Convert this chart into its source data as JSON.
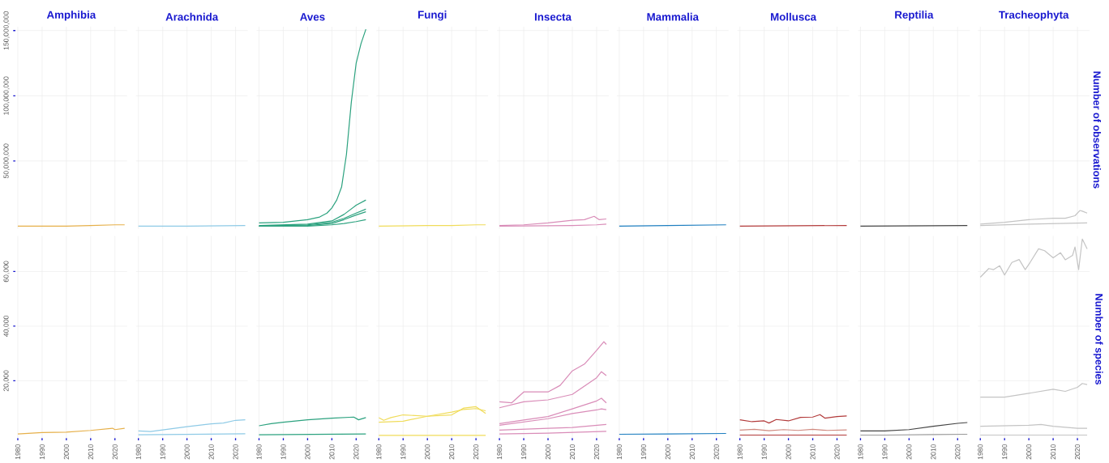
{
  "chart_data": [
    {
      "type": "line",
      "title": "Amphibia",
      "grid": true,
      "tick_labels": "y",
      "xlim": [
        1979,
        2025
      ],
      "ylim": [
        -2000000,
        153000000
      ],
      "xticks": [
        1980,
        1990,
        2000,
        2010,
        2020
      ],
      "yticks": [
        {
          "value": 50000000,
          "label": "50,000,000"
        },
        {
          "value": 100000000,
          "label": "100,000,000"
        },
        {
          "value": 150000000,
          "label": "150,000,000"
        }
      ],
      "series": [
        {
          "color": "#e6b04a",
          "x": [
            1980,
            1990,
            2000,
            2010,
            2020,
            2024
          ],
          "values": [
            0,
            0,
            0,
            500000,
            1000000,
            1000000
          ]
        }
      ]
    },
    {
      "type": "line",
      "title": "Arachnida",
      "grid": true,
      "tick_labels": false,
      "xlim": [
        1979,
        2025
      ],
      "ylim": [
        -2000000,
        153000000
      ],
      "xticks": [
        1980,
        1990,
        2000,
        2010,
        2020
      ],
      "yticks": [
        50000000,
        100000000,
        150000000
      ],
      "series": [
        {
          "color": "#8ecae6",
          "x": [
            1980,
            2000,
            2024
          ],
          "values": [
            0,
            0,
            500000
          ]
        }
      ]
    },
    {
      "type": "line",
      "title": "Aves",
      "grid": true,
      "tick_labels": false,
      "xlim": [
        1979,
        2025
      ],
      "ylim": [
        -2000000,
        153000000
      ],
      "xticks": [
        1980,
        1990,
        2000,
        2010,
        2020
      ],
      "yticks": [
        50000000,
        100000000,
        150000000
      ],
      "series": [
        {
          "color": "#2ca27f",
          "x": [
            1980,
            1990,
            2000,
            2005,
            2008,
            2010,
            2012,
            2014,
            2016,
            2018,
            2020,
            2022,
            2024
          ],
          "values": [
            2500000,
            3000000,
            5000000,
            7000000,
            10000000,
            14000000,
            20000000,
            30000000,
            55000000,
            95000000,
            125000000,
            140000000,
            151000000
          ]
        },
        {
          "color": "#2ca27f",
          "x": [
            1980,
            2000,
            2010,
            2015,
            2020,
            2024
          ],
          "values": [
            500000,
            1500000,
            4000000,
            9000000,
            16000000,
            20000000
          ]
        },
        {
          "color": "#2ca27f",
          "x": [
            1980,
            2000,
            2010,
            2015,
            2020,
            2024
          ],
          "values": [
            0,
            1000000,
            3000000,
            6000000,
            10000000,
            13000000
          ]
        },
        {
          "color": "#2ca27f",
          "x": [
            1980,
            2000,
            2010,
            2015,
            2020,
            2024
          ],
          "values": [
            0,
            500000,
            2000000,
            5000000,
            8500000,
            11000000
          ]
        },
        {
          "color": "#2ca27f",
          "x": [
            1980,
            2000,
            2010,
            2015,
            2020,
            2024
          ],
          "values": [
            0,
            0,
            1000000,
            2000000,
            3500000,
            5000000
          ]
        }
      ]
    },
    {
      "type": "line",
      "title": "Fungi",
      "grid": true,
      "tick_labels": false,
      "xlim": [
        1979,
        2025
      ],
      "ylim": [
        -2000000,
        153000000
      ],
      "xticks": [
        1980,
        1990,
        2000,
        2010,
        2020
      ],
      "yticks": [
        50000000,
        100000000,
        150000000
      ],
      "series": [
        {
          "color": "#f0dc5a",
          "x": [
            1980,
            2000,
            2010,
            2020,
            2024
          ],
          "values": [
            0,
            500000,
            500000,
            1000000,
            1000000
          ]
        }
      ]
    },
    {
      "type": "line",
      "title": "Insecta",
      "grid": true,
      "tick_labels": false,
      "xlim": [
        1979,
        2025
      ],
      "ylim": [
        -2000000,
        153000000
      ],
      "xticks": [
        1980,
        1990,
        2000,
        2010,
        2020
      ],
      "yticks": [
        50000000,
        100000000,
        150000000
      ],
      "series": [
        {
          "color": "#d98cb8",
          "x": [
            1980,
            1990,
            2000,
            2010,
            2015,
            2019,
            2021,
            2024
          ],
          "values": [
            500000,
            1000000,
            2500000,
            4500000,
            5000000,
            7500000,
            5000000,
            5500000
          ]
        },
        {
          "color": "#d98cb8",
          "x": [
            1980,
            2010,
            2020,
            2024
          ],
          "values": [
            0,
            500000,
            1000000,
            1500000
          ]
        }
      ]
    },
    {
      "type": "line",
      "title": "Mammalia",
      "grid": true,
      "tick_labels": false,
      "xlim": [
        1979,
        2025
      ],
      "ylim": [
        -2000000,
        153000000
      ],
      "xticks": [
        1980,
        1990,
        2000,
        2010,
        2020
      ],
      "yticks": [
        50000000,
        100000000,
        150000000
      ],
      "series": [
        {
          "color": "#1f7fc0",
          "x": [
            1980,
            2000,
            2024
          ],
          "values": [
            0,
            500000,
            1000000
          ]
        }
      ]
    },
    {
      "type": "line",
      "title": "Mollusca",
      "grid": true,
      "tick_labels": false,
      "xlim": [
        1979,
        2025
      ],
      "ylim": [
        -2000000,
        153000000
      ],
      "xticks": [
        1980,
        1990,
        2000,
        2010,
        2020
      ],
      "yticks": [
        50000000,
        100000000,
        150000000
      ],
      "series": [
        {
          "color": "#b23a3a",
          "x": [
            1980,
            2024
          ],
          "values": [
            0,
            500000
          ]
        }
      ]
    },
    {
      "type": "line",
      "title": "Reptilia",
      "grid": true,
      "tick_labels": false,
      "xlim": [
        1979,
        2025
      ],
      "ylim": [
        -2000000,
        153000000
      ],
      "xticks": [
        1980,
        1990,
        2000,
        2010,
        2020
      ],
      "yticks": [
        50000000,
        100000000,
        150000000
      ],
      "series": [
        {
          "color": "#444444",
          "x": [
            1980,
            2024
          ],
          "values": [
            0,
            500000
          ]
        }
      ]
    },
    {
      "type": "line",
      "title": "Tracheophyta",
      "ylabel": "Number of observations",
      "grid": true,
      "tick_labels": false,
      "xlim": [
        1979,
        2025
      ],
      "ylim": [
        -2000000,
        153000000
      ],
      "xticks": [
        1980,
        1990,
        2000,
        2010,
        2020
      ],
      "yticks": [
        50000000,
        100000000,
        150000000
      ],
      "series": [
        {
          "color": "#c4c4c4",
          "x": [
            1980,
            1990,
            2000,
            2010,
            2015,
            2019,
            2021,
            2022,
            2024
          ],
          "values": [
            1500000,
            3000000,
            5000000,
            6000000,
            6000000,
            8000000,
            12000000,
            11500000,
            10000000
          ]
        },
        {
          "color": "#c4c4c4",
          "x": [
            1980,
            2000,
            2024
          ],
          "values": [
            500000,
            1500000,
            2500000
          ]
        }
      ]
    },
    {
      "type": "line",
      "grid": true,
      "xlim": [
        1979,
        2025
      ],
      "ylim": [
        -1000,
        73000
      ],
      "xticks": [
        1980,
        1990,
        2000,
        2010,
        2020
      ],
      "yticks": [
        {
          "value": 20000,
          "label": "20,000"
        },
        {
          "value": 40000,
          "label": "40,000"
        },
        {
          "value": 60000,
          "label": "60,000"
        }
      ],
      "series": [
        {
          "color": "#e6b04a",
          "x": [
            1980,
            1990,
            2000,
            2010,
            2019,
            2020,
            2024
          ],
          "values": [
            500,
            1000,
            1200,
            1800,
            2600,
            2100,
            2600
          ]
        }
      ]
    },
    {
      "type": "line",
      "grid": true,
      "tick_labels": "x",
      "xlim": [
        1979,
        2025
      ],
      "ylim": [
        -1000,
        73000
      ],
      "xticks": [
        1980,
        1990,
        2000,
        2010,
        2020
      ],
      "yticks": [
        20000,
        40000,
        60000
      ],
      "series": [
        {
          "color": "#8ecae6",
          "x": [
            1980,
            1985,
            1990,
            2000,
            2010,
            2015,
            2020,
            2024
          ],
          "values": [
            1600,
            1400,
            2000,
            3200,
            4200,
            4500,
            5500,
            5700
          ]
        },
        {
          "color": "#8ecae6",
          "x": [
            1980,
            2024
          ],
          "values": [
            200,
            600
          ]
        }
      ]
    },
    {
      "type": "line",
      "grid": true,
      "tick_labels": "x",
      "xlim": [
        1979,
        2025
      ],
      "ylim": [
        -1000,
        73000
      ],
      "xticks": [
        1980,
        1990,
        2000,
        2010,
        2020
      ],
      "yticks": [
        20000,
        40000,
        60000
      ],
      "series": [
        {
          "color": "#2ca27f",
          "x": [
            1980,
            1985,
            1990,
            2000,
            2010,
            2019,
            2021,
            2024
          ],
          "values": [
            3500,
            4300,
            4800,
            5700,
            6300,
            6700,
            5700,
            6500
          ]
        },
        {
          "color": "#2ca27f",
          "x": [
            1980,
            2024
          ],
          "values": [
            200,
            500
          ]
        }
      ]
    },
    {
      "type": "line",
      "grid": true,
      "tick_labels": "x",
      "xlim": [
        1979,
        2025
      ],
      "ylim": [
        -1000,
        73000
      ],
      "xticks": [
        1980,
        1990,
        2000,
        2010,
        2020
      ],
      "yticks": [
        20000,
        40000,
        60000
      ],
      "series": [
        {
          "color": "#f0dc5a",
          "x": [
            1980,
            1982,
            1985,
            1990,
            2000,
            2010,
            2015,
            2020,
            2024
          ],
          "values": [
            6500,
            5500,
            6500,
            7500,
            7000,
            7500,
            10000,
            10500,
            8000
          ]
        },
        {
          "color": "#f0dc5a",
          "x": [
            1980,
            1990,
            2000,
            2010,
            2015,
            2020,
            2024
          ],
          "values": [
            4800,
            5200,
            7000,
            8500,
            9500,
            9800,
            9000
          ]
        },
        {
          "color": "#f0dc5a",
          "x": [
            1980,
            2024
          ],
          "values": [
            0,
            0
          ]
        }
      ]
    },
    {
      "type": "line",
      "grid": true,
      "tick_labels": "x",
      "xlim": [
        1979,
        2025
      ],
      "ylim": [
        -1000,
        73000
      ],
      "xticks": [
        1980,
        1990,
        2000,
        2010,
        2020
      ],
      "yticks": [
        20000,
        40000,
        60000
      ],
      "series": [
        {
          "color": "#d98cb8",
          "x": [
            1980,
            1985,
            1990,
            2000,
            2005,
            2010,
            2015,
            2020,
            2023,
            2024
          ],
          "values": [
            12300,
            11900,
            15900,
            15900,
            18300,
            23600,
            26100,
            31100,
            34300,
            33300
          ]
        },
        {
          "color": "#d98cb8",
          "x": [
            1980,
            1990,
            2000,
            2010,
            2020,
            2022,
            2024
          ],
          "values": [
            10100,
            12300,
            13000,
            15000,
            21100,
            23300,
            21900
          ]
        },
        {
          "color": "#d98cb8",
          "x": [
            1980,
            1990,
            2000,
            2010,
            2020,
            2022,
            2024
          ],
          "values": [
            4300,
            5600,
            6900,
            9700,
            12600,
            13600,
            11900
          ]
        },
        {
          "color": "#d98cb8",
          "x": [
            1980,
            2000,
            2010,
            2020,
            2022,
            2024
          ],
          "values": [
            3700,
            6100,
            8000,
            9300,
            9700,
            9400
          ]
        },
        {
          "color": "#d98cb8",
          "x": [
            1980,
            2000,
            2010,
            2024
          ],
          "values": [
            1900,
            2600,
            2900,
            4000
          ]
        },
        {
          "color": "#d98cb8",
          "x": [
            1980,
            2000,
            2024
          ],
          "values": [
            500,
            800,
            1500
          ]
        }
      ]
    },
    {
      "type": "line",
      "grid": true,
      "tick_labels": "x",
      "xlim": [
        1979,
        2025
      ],
      "ylim": [
        -1000,
        73000
      ],
      "xticks": [
        1980,
        1990,
        2000,
        2010,
        2020
      ],
      "yticks": [
        20000,
        40000,
        60000
      ],
      "series": [
        {
          "color": "#1f7fc0",
          "x": [
            1980,
            2000,
            2024
          ],
          "values": [
            400,
            500,
            700
          ]
        }
      ]
    },
    {
      "type": "line",
      "grid": true,
      "tick_labels": "x",
      "xlim": [
        1979,
        2025
      ],
      "ylim": [
        -1000,
        73000
      ],
      "xticks": [
        1980,
        1990,
        2000,
        2010,
        2020
      ],
      "yticks": [
        20000,
        40000,
        60000
      ],
      "series": [
        {
          "color": "#b23a3a",
          "x": [
            1980,
            1985,
            1990,
            1992,
            1995,
            2000,
            2005,
            2010,
            2013,
            2015,
            2020,
            2024
          ],
          "values": [
            5700,
            5000,
            5300,
            4500,
            5800,
            5300,
            6600,
            6700,
            7600,
            6300,
            6900,
            7100
          ]
        },
        {
          "color": "#d08a80",
          "x": [
            1980,
            1986,
            1992,
            1998,
            2004,
            2010,
            2016,
            2024
          ],
          "values": [
            1900,
            2200,
            1700,
            2100,
            1800,
            2200,
            1800,
            2000
          ]
        },
        {
          "color": "#b23a3a",
          "x": [
            1980,
            2024
          ],
          "values": [
            100,
            100
          ]
        }
      ]
    },
    {
      "type": "line",
      "grid": true,
      "tick_labels": "x",
      "xlim": [
        1979,
        2025
      ],
      "ylim": [
        -1000,
        73000
      ],
      "xticks": [
        1980,
        1990,
        2000,
        2010,
        2020
      ],
      "yticks": [
        20000,
        40000,
        60000
      ],
      "series": [
        {
          "color": "#444444",
          "x": [
            1980,
            1990,
            2000,
            2010,
            2020,
            2024
          ],
          "values": [
            1600,
            1600,
            2100,
            3300,
            4400,
            4700
          ]
        },
        {
          "color": "#9a9a9a",
          "x": [
            1980,
            1990,
            2000,
            2010,
            2024
          ],
          "values": [
            100,
            100,
            200,
            300,
            400
          ]
        }
      ]
    },
    {
      "type": "line",
      "ylabel": "Number of species",
      "grid": true,
      "tick_labels": "x",
      "xlim": [
        1979,
        2025
      ],
      "ylim": [
        -1000,
        73000
      ],
      "xticks": [
        1980,
        1990,
        2000,
        2010,
        2020
      ],
      "yticks": [
        20000,
        40000,
        60000
      ],
      "series": [
        {
          "color": "#c4c4c4",
          "x": [
            1980,
            1983.5,
            1985.5,
            1988,
            1990,
            1993,
            1996,
            1998.5,
            2000.5,
            2004,
            2006.5,
            2010,
            2013,
            2015,
            2018,
            2019,
            2020.5,
            2022,
            2024
          ],
          "values": [
            57900,
            61100,
            60700,
            62100,
            58700,
            63300,
            64400,
            60700,
            63300,
            68300,
            67600,
            65000,
            66900,
            64300,
            65900,
            69000,
            60700,
            71900,
            68300
          ]
        },
        {
          "color": "#c4c4c4",
          "x": [
            1980,
            1990,
            2000,
            2010,
            2015,
            2020,
            2022,
            2024
          ],
          "values": [
            14000,
            14000,
            15400,
            16900,
            16100,
            17600,
            19000,
            18600
          ]
        },
        {
          "color": "#c4c4c4",
          "x": [
            1980,
            2000,
            2005,
            2010,
            2020,
            2024
          ],
          "values": [
            3300,
            3700,
            4000,
            3300,
            2600,
            2600
          ]
        },
        {
          "color": "#c4c4c4",
          "x": [
            1980,
            2024
          ],
          "values": [
            100,
            100
          ]
        }
      ]
    }
  ]
}
